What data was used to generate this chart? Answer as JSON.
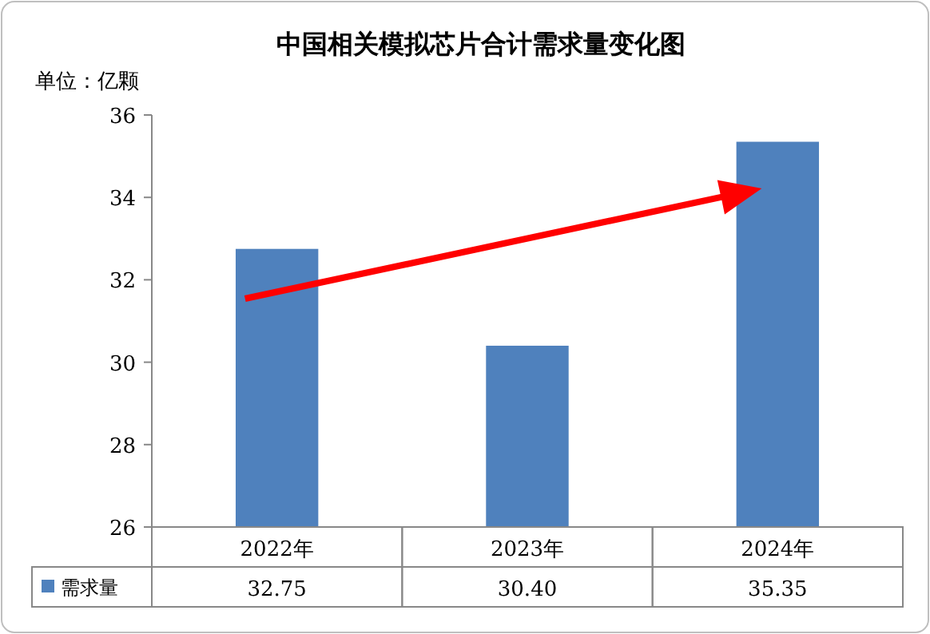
{
  "chart_data": {
    "type": "bar",
    "title": "中国相关模拟芯片合计需求量变化图",
    "ylabel": "单位：亿颗",
    "categories": [
      "2022年",
      "2023年",
      "2024年"
    ],
    "series": [
      {
        "name": "需求量",
        "color": "#4f81bd",
        "values": [
          32.75,
          30.4,
          35.35
        ],
        "value_labels": [
          "32.75",
          "30.40",
          "35.35"
        ]
      }
    ],
    "ylim": [
      26,
      36
    ],
    "yticks": [
      26,
      28,
      30,
      32,
      34,
      36
    ],
    "legend": "bottom"
  }
}
